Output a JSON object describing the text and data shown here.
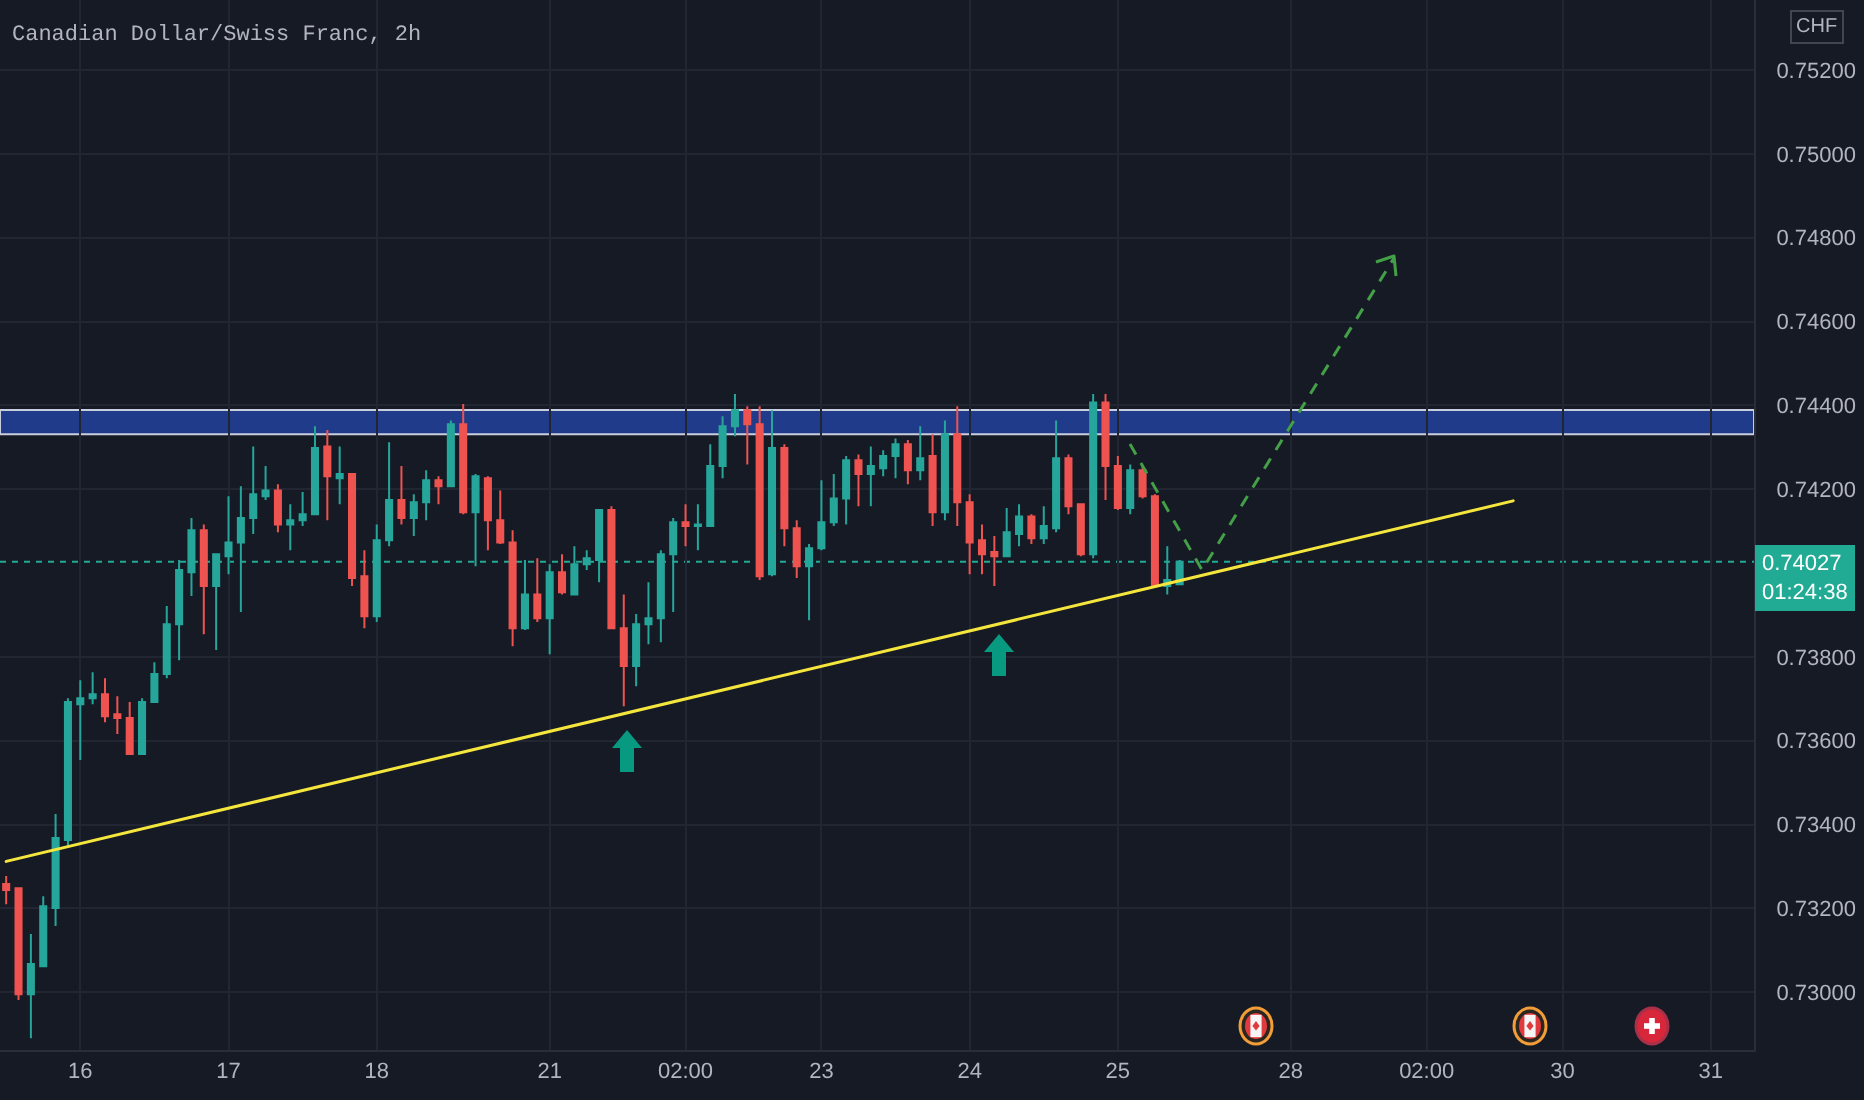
{
  "chart_data": {
    "type": "candlestick",
    "title": "Canadian Dollar/Swiss Franc, 2h",
    "ylabel": "CHF",
    "categories": [
      null,
      null,
      null,
      null,
      null,
      null,
      "16",
      null,
      null,
      null,
      null,
      null,
      null,
      null,
      null,
      null,
      null,
      null,
      "17",
      null,
      null,
      null,
      null,
      null,
      null,
      null,
      null,
      null,
      null,
      null,
      "18",
      null,
      null,
      null,
      null,
      null,
      null,
      null,
      null,
      null,
      null,
      null,
      null,
      null,
      "21",
      null,
      null,
      null,
      null,
      null,
      null,
      null,
      null,
      null,
      null,
      "02:00",
      null,
      null,
      null,
      null,
      null,
      null,
      null,
      null,
      null,
      null,
      "23",
      null,
      null,
      null,
      null,
      null,
      null,
      null,
      null,
      null,
      null,
      null,
      "24",
      null,
      null,
      null,
      null,
      null,
      null,
      null,
      null,
      null,
      null,
      null,
      "25",
      null,
      null,
      null,
      null,
      null,
      null,
      null,
      null,
      null,
      null,
      null,
      null,
      null,
      "28",
      null,
      null,
      null,
      null,
      null,
      null,
      null,
      null,
      null,
      null,
      "02:00",
      null,
      null,
      null,
      null,
      null,
      null,
      null,
      null,
      null,
      null,
      "30",
      null,
      null,
      null,
      null,
      null,
      null,
      null,
      null,
      null,
      null,
      null,
      "31",
      null,
      null,
      null
    ],
    "ohlc": [
      [
        0.73258,
        0.73277,
        0.7321,
        0.73244
      ],
      [
        0.73248,
        0.7325,
        0.72981,
        0.72995
      ],
      [
        0.72995,
        0.73139,
        0.7289,
        0.73067
      ],
      [
        0.73062,
        0.73229,
        0.73062,
        0.73205
      ],
      [
        0.73201,
        0.73425,
        0.73158,
        0.73368
      ],
      [
        0.73363,
        0.73701,
        0.73349,
        0.73692
      ],
      [
        0.73687,
        0.73744,
        0.73554,
        0.73701
      ],
      [
        0.73701,
        0.73763,
        0.73687,
        0.73711
      ],
      [
        0.73711,
        0.73749,
        0.73644,
        0.73658
      ],
      [
        0.73663,
        0.73706,
        0.73616,
        0.73654
      ],
      [
        0.73654,
        0.73692,
        0.73568,
        0.73568
      ],
      [
        0.73568,
        0.73701,
        0.73568,
        0.73692
      ],
      [
        0.73692,
        0.73787,
        0.73692,
        0.73759
      ],
      [
        0.73759,
        0.73921,
        0.73749,
        0.73878
      ],
      [
        0.73878,
        0.74031,
        0.73792,
        0.74007
      ],
      [
        0.74002,
        0.74131,
        0.73945,
        0.74102
      ],
      [
        0.74102,
        0.74116,
        0.73854,
        0.73969
      ],
      [
        0.73969,
        0.74045,
        0.73816,
        0.74045
      ],
      [
        0.7404,
        0.74183,
        0.73997,
        0.74073
      ],
      [
        0.74073,
        0.74207,
        0.73907,
        0.74131
      ],
      [
        0.74131,
        0.74302,
        0.74093,
        0.74188
      ],
      [
        0.74183,
        0.74255,
        0.74174,
        0.74197
      ],
      [
        0.74197,
        0.74212,
        0.74097,
        0.74116
      ],
      [
        0.74116,
        0.74164,
        0.74054,
        0.74126
      ],
      [
        0.74126,
        0.74193,
        0.74112,
        0.7414
      ],
      [
        0.7414,
        0.7435,
        0.7414,
        0.74298
      ],
      [
        0.74302,
        0.74341,
        0.74126,
        0.74231
      ],
      [
        0.74226,
        0.74302,
        0.74164,
        0.74236
      ],
      [
        0.74236,
        0.74236,
        0.73969,
        0.73988
      ],
      [
        0.73992,
        0.74054,
        0.73868,
        0.73897
      ],
      [
        0.73897,
        0.74116,
        0.73883,
        0.74078
      ],
      [
        0.74078,
        0.74312,
        0.74064,
        0.74174
      ],
      [
        0.74174,
        0.74255,
        0.74116,
        0.74131
      ],
      [
        0.74131,
        0.74188,
        0.74088,
        0.74169
      ],
      [
        0.74169,
        0.74245,
        0.74126,
        0.74221
      ],
      [
        0.74221,
        0.74231,
        0.74164,
        0.74207
      ],
      [
        0.74207,
        0.74364,
        0.74207,
        0.74355
      ],
      [
        0.74355,
        0.74403,
        0.7414,
        0.74145
      ],
      [
        0.74145,
        0.74236,
        0.74016,
        0.74231
      ],
      [
        0.74226,
        0.74231,
        0.74054,
        0.74126
      ],
      [
        0.74126,
        0.74197,
        0.74069,
        0.74073
      ],
      [
        0.74073,
        0.74102,
        0.73825,
        0.73868
      ],
      [
        0.73868,
        0.74031,
        0.73864,
        0.73949
      ],
      [
        0.73949,
        0.74035,
        0.73883,
        0.73892
      ],
      [
        0.73892,
        0.74021,
        0.73806,
        0.74002
      ],
      [
        0.74002,
        0.74045,
        0.73949,
        0.73954
      ],
      [
        0.73949,
        0.74064,
        0.73949,
        0.74021
      ],
      [
        0.74021,
        0.74054,
        0.74007,
        0.74035
      ],
      [
        0.74031,
        0.7415,
        0.73978,
        0.7415
      ],
      [
        0.7415,
        0.74159,
        0.73868,
        0.73868
      ],
      [
        0.73868,
        0.73949,
        0.73682,
        0.73778
      ],
      [
        0.73778,
        0.73902,
        0.7373,
        0.73878
      ],
      [
        0.73878,
        0.73978,
        0.7383,
        0.73892
      ],
      [
        0.73892,
        0.74054,
        0.73835,
        0.74045
      ],
      [
        0.74045,
        0.74131,
        0.73907,
        0.74121
      ],
      [
        0.74121,
        0.74164,
        0.74064,
        0.74112
      ],
      [
        0.74112,
        0.74164,
        0.74054,
        0.74116
      ],
      [
        0.74112,
        0.74307,
        0.74112,
        0.74255
      ],
      [
        0.74255,
        0.74374,
        0.74226,
        0.7435
      ],
      [
        0.7435,
        0.74427,
        0.74326,
        0.74388
      ],
      [
        0.74388,
        0.74398,
        0.74259,
        0.74355
      ],
      [
        0.74355,
        0.74398,
        0.73983,
        0.73992
      ],
      [
        0.73997,
        0.74388,
        0.73992,
        0.74298
      ],
      [
        0.74298,
        0.74307,
        0.74064,
        0.74107
      ],
      [
        0.74107,
        0.74126,
        0.73988,
        0.74016
      ],
      [
        0.74016,
        0.74069,
        0.73887,
        0.74059
      ],
      [
        0.74059,
        0.74221,
        0.74054,
        0.74121
      ],
      [
        0.74121,
        0.74236,
        0.74112,
        0.74178
      ],
      [
        0.74178,
        0.74279,
        0.74116,
        0.74269
      ],
      [
        0.74269,
        0.74283,
        0.74159,
        0.74236
      ],
      [
        0.74236,
        0.74302,
        0.74159,
        0.74255
      ],
      [
        0.7425,
        0.74293,
        0.74231,
        0.74279
      ],
      [
        0.74279,
        0.74321,
        0.74226,
        0.74307
      ],
      [
        0.74307,
        0.74317,
        0.74212,
        0.74245
      ],
      [
        0.74245,
        0.7435,
        0.74221,
        0.74274
      ],
      [
        0.74279,
        0.74331,
        0.74112,
        0.74145
      ],
      [
        0.74145,
        0.74364,
        0.74126,
        0.74331
      ],
      [
        0.74331,
        0.74398,
        0.74112,
        0.74169
      ],
      [
        0.74169,
        0.74188,
        0.73997,
        0.74073
      ],
      [
        0.74078,
        0.74116,
        0.73997,
        0.74045
      ],
      [
        0.7405,
        0.74088,
        0.73969,
        0.7404
      ],
      [
        0.7404,
        0.74155,
        0.7404,
        0.74097
      ],
      [
        0.74093,
        0.74164,
        0.74064,
        0.74135
      ],
      [
        0.74135,
        0.7414,
        0.74069,
        0.74083
      ],
      [
        0.74083,
        0.74159,
        0.74069,
        0.74112
      ],
      [
        0.74107,
        0.74364,
        0.74097,
        0.74274
      ],
      [
        0.74274,
        0.74283,
        0.7414,
        0.74159
      ],
      [
        0.74164,
        0.74164,
        0.7404,
        0.74045
      ],
      [
        0.74045,
        0.74427,
        0.74035,
        0.74407
      ],
      [
        0.74407,
        0.74427,
        0.74174,
        0.74255
      ],
      [
        0.74255,
        0.74279,
        0.7415,
        0.74155
      ],
      [
        0.74155,
        0.74259,
        0.7414,
        0.74245
      ],
      [
        0.74245,
        0.74255,
        0.74178,
        0.74183
      ],
      [
        0.74183,
        0.74188,
        0.73969,
        0.73969
      ],
      [
        0.73969,
        0.74064,
        0.73949,
        0.73983
      ],
      [
        0.73973,
        0.74031,
        0.73973,
        0.74027
      ],
      null,
      null,
      null,
      null,
      null,
      null,
      null,
      null,
      null,
      null,
      null,
      null,
      null,
      null,
      null,
      null,
      null,
      null,
      null,
      null,
      null,
      null,
      null,
      null,
      null,
      null,
      null,
      null,
      null,
      null,
      null,
      null,
      null,
      null,
      null,
      null,
      null,
      null,
      null,
      null,
      null,
      null,
      null,
      null,
      null,
      null
    ],
    "colors": [
      "#ef5350",
      "#ef5350",
      "#26a69a",
      "#26a69a",
      "#26a69a",
      "#26a69a",
      "#26a69a",
      "#26a69a",
      "#ef5350",
      "#ef5350",
      "#ef5350",
      "#26a69a",
      "#26a69a",
      "#26a69a",
      "#26a69a",
      "#26a69a",
      "#ef5350",
      "#26a69a",
      "#26a69a",
      "#26a69a",
      "#26a69a",
      "#26a69a",
      "#ef5350",
      "#26a69a",
      "#26a69a",
      "#26a69a",
      "#ef5350",
      "#26a69a",
      "#ef5350",
      "#ef5350",
      "#26a69a",
      "#26a69a",
      "#ef5350",
      "#26a69a",
      "#26a69a",
      "#ef5350",
      "#26a69a",
      "#ef5350",
      "#26a69a",
      "#ef5350",
      "#ef5350",
      "#ef5350",
      "#26a69a",
      "#ef5350",
      "#26a69a",
      "#ef5350",
      "#26a69a",
      "#26a69a",
      "#26a69a",
      "#ef5350",
      "#ef5350",
      "#26a69a",
      "#26a69a",
      "#26a69a",
      "#26a69a",
      "#ef5350",
      "#26a69a",
      "#26a69a",
      "#26a69a",
      "#26a69a",
      "#ef5350",
      "#ef5350",
      "#26a69a",
      "#ef5350",
      "#ef5350",
      "#26a69a",
      "#26a69a",
      "#26a69a",
      "#26a69a",
      "#ef5350",
      "#26a69a",
      "#26a69a",
      "#26a69a",
      "#ef5350",
      "#26a69a",
      "#ef5350",
      "#26a69a",
      "#ef5350",
      "#ef5350",
      "#ef5350",
      "#ef5350",
      "#26a69a",
      "#26a69a",
      "#ef5350",
      "#26a69a",
      "#26a69a",
      "#ef5350",
      "#ef5350",
      "#26a69a",
      "#ef5350",
      "#ef5350",
      "#26a69a",
      "#ef5350",
      "#ef5350",
      "#26a69a",
      "#26a69a",
      null,
      null,
      null,
      null,
      null,
      null,
      null,
      null,
      null,
      null,
      null,
      null,
      null,
      null,
      null,
      null,
      null,
      null,
      null,
      null,
      null,
      null,
      null,
      null,
      null,
      null,
      null,
      null,
      null,
      null,
      null,
      null,
      null,
      null,
      null,
      null,
      null,
      null,
      null,
      null,
      null,
      null,
      null,
      null,
      null,
      null
    ],
    "series": [
      {
        "type": "line",
        "color": "#f5e63d",
        "values": [
          0.73312,
          null,
          null,
          null,
          null,
          null,
          null,
          null,
          null,
          null,
          null,
          null,
          null,
          null,
          null,
          null,
          null,
          null,
          null,
          null,
          null,
          null,
          null,
          null,
          null,
          null,
          null,
          null,
          null,
          null,
          null,
          null,
          null,
          null,
          null,
          null,
          null,
          null,
          null,
          null,
          null,
          null,
          null,
          null,
          null,
          null,
          null,
          null,
          null,
          null,
          null,
          null,
          null,
          null,
          null,
          null,
          null,
          null,
          null,
          null,
          null,
          null,
          null,
          null,
          null,
          null,
          null,
          null,
          null,
          null,
          null,
          null,
          null,
          null,
          null,
          null,
          null,
          null,
          null,
          null,
          null,
          null,
          null,
          null,
          null,
          null,
          null,
          null,
          null,
          null,
          null,
          null,
          null,
          null,
          null,
          null,
          null,
          null,
          null,
          null,
          null,
          null,
          null,
          null,
          null,
          null,
          null,
          null,
          null,
          null,
          null,
          null,
          null,
          null,
          null,
          null,
          null,
          null,
          null,
          null,
          null,
          null,
          0.74172,
          null,
          null,
          null,
          null,
          null,
          null,
          null,
          null,
          null,
          null,
          null,
          null,
          null,
          null,
          null,
          null,
          null,
          null,
          null
        ]
      }
    ],
    "bands": [
      {
        "axis": "y",
        "from": 0.74331,
        "to": 0.74389,
        "color": "#1f3b8a"
      }
    ],
    "ref_lines": [
      {
        "axis": "y",
        "value": 0.74027,
        "label": "0.74027\n01:24:38",
        "color": "#22ab94",
        "line_style": "dotted"
      }
    ],
    "ylim": [
      0.72862,
      0.75367
    ],
    "yticks": [
      {
        "value": 0.73,
        "label": "0.73000"
      },
      {
        "value": 0.732,
        "label": "0.73200"
      },
      {
        "value": 0.734,
        "label": "0.73400"
      },
      {
        "value": 0.736,
        "label": "0.73600"
      },
      {
        "value": 0.738,
        "label": "0.73800"
      },
      {
        "value": 0.742,
        "label": "0.74200"
      },
      {
        "value": 0.744,
        "label": "0.74400"
      },
      {
        "value": 0.746,
        "label": "0.74600"
      },
      {
        "value": 0.748,
        "label": "0.74800"
      },
      {
        "value": 0.75,
        "label": "0.75000"
      },
      {
        "value": 0.752,
        "label": "0.75200"
      }
    ],
    "grid": true
  }
}
